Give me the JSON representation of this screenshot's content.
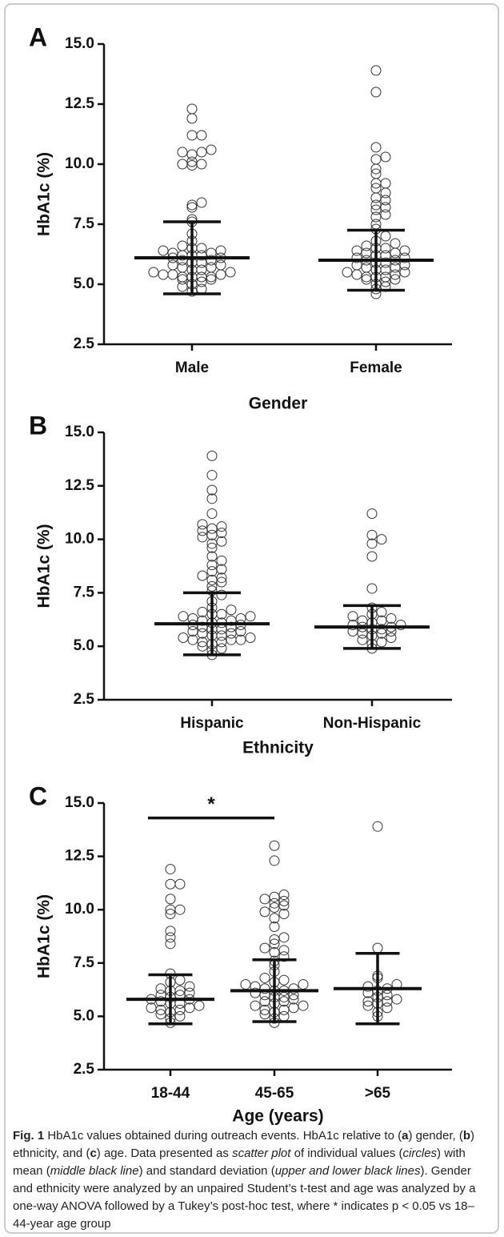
{
  "chart_data": [
    {
      "type": "dotplot",
      "panel": "A",
      "ylabel": "HbA1c (%)",
      "xlabel": "Gender",
      "categories": [
        "Male",
        "Female"
      ],
      "ylim": [
        2.5,
        15
      ],
      "yticks": [
        2.5,
        {
          "value": 5,
          "label": "5.0"
        },
        7.5,
        {
          "value": 10,
          "label": "10.0"
        },
        12.5,
        {
          "value": 15,
          "label": "15.0"
        }
      ],
      "groups": [
        {
          "mean": 6.1,
          "sd": 1.5,
          "values": [
            12.3,
            11.9,
            11.2,
            11.2,
            10.6,
            10.5,
            10.5,
            10.4,
            10.1,
            10.0,
            10.0,
            9.95,
            8.4,
            8.3,
            8.2,
            7.7,
            7.6,
            7.1,
            6.8,
            6.6,
            6.5,
            6.5,
            6.4,
            6.4,
            6.3,
            6.3,
            6.2,
            6.2,
            6.2,
            6.1,
            6.1,
            6.0,
            6.0,
            5.9,
            5.9,
            5.8,
            5.8,
            5.7,
            5.7,
            5.6,
            5.6,
            5.5,
            5.5,
            5.4,
            5.4,
            5.4,
            5.3,
            5.3,
            5.3,
            5.3,
            5.2,
            5.2,
            5.1,
            5.0,
            4.9,
            4.8,
            4.7
          ]
        },
        {
          "mean": 6.0,
          "sd": 1.25,
          "values": [
            13.9,
            13.0,
            10.7,
            10.3,
            10.2,
            9.8,
            9.6,
            9.2,
            9.2,
            9.0,
            8.8,
            8.6,
            8.5,
            8.3,
            8.2,
            8.1,
            7.9,
            7.8,
            7.5,
            7.3,
            7.0,
            6.8,
            6.7,
            6.6,
            6.5,
            6.5,
            6.4,
            6.4,
            6.3,
            6.3,
            6.2,
            6.2,
            6.1,
            6.1,
            6.0,
            6.0,
            5.9,
            5.9,
            5.8,
            5.8,
            5.7,
            5.7,
            5.6,
            5.6,
            5.5,
            5.5,
            5.4,
            5.4,
            5.3,
            5.3,
            5.3,
            5.2,
            5.2,
            5.1,
            5.0,
            4.9,
            4.8,
            4.6
          ]
        }
      ]
    },
    {
      "type": "dotplot",
      "panel": "B",
      "ylabel": "HbA1c (%)",
      "xlabel": "Ethnicity",
      "categories": [
        "Hispanic",
        "Non-Hispanic"
      ],
      "ylim": [
        2.5,
        15
      ],
      "yticks": [
        2.5,
        {
          "value": 5,
          "label": "5.0"
        },
        7.5,
        {
          "value": 10,
          "label": "10.0"
        },
        12.5,
        {
          "value": 15,
          "label": "15.0"
        }
      ],
      "groups": [
        {
          "mean": 6.05,
          "sd": 1.45,
          "values": [
            13.9,
            13.0,
            12.3,
            11.9,
            11.2,
            10.7,
            10.6,
            10.5,
            10.4,
            10.3,
            10.2,
            10.1,
            9.9,
            9.8,
            9.6,
            9.2,
            9.0,
            8.8,
            8.6,
            8.5,
            8.3,
            8.2,
            8.1,
            8.0,
            7.8,
            7.6,
            7.4,
            7.1,
            6.8,
            6.7,
            6.6,
            6.5,
            6.5,
            6.4,
            6.4,
            6.3,
            6.3,
            6.2,
            6.2,
            6.1,
            6.1,
            6.0,
            6.0,
            5.9,
            5.9,
            5.8,
            5.8,
            5.7,
            5.7,
            5.6,
            5.6,
            5.5,
            5.5,
            5.4,
            5.4,
            5.3,
            5.3,
            5.3,
            5.2,
            5.2,
            5.1,
            5.0,
            4.9,
            4.8,
            4.6
          ]
        },
        {
          "mean": 5.9,
          "sd": 1.0,
          "values": [
            11.2,
            10.2,
            10.0,
            9.8,
            9.2,
            7.7,
            6.8,
            6.6,
            6.5,
            6.4,
            6.3,
            6.2,
            6.2,
            6.1,
            6.0,
            6.0,
            5.9,
            5.9,
            5.8,
            5.8,
            5.7,
            5.7,
            5.6,
            5.6,
            5.5,
            5.4,
            5.3,
            5.2,
            5.1,
            4.9
          ]
        }
      ]
    },
    {
      "type": "dotplot",
      "panel": "C",
      "ylabel": "HbA1c (%)",
      "xlabel": "Age (years)",
      "categories": [
        "18-44",
        "45-65",
        ">65"
      ],
      "ylim": [
        2.5,
        15
      ],
      "yticks": [
        2.5,
        {
          "value": 5,
          "label": "5.0"
        },
        7.5,
        {
          "value": 10,
          "label": "10.0"
        },
        12.5,
        {
          "value": 15,
          "label": "15.0"
        }
      ],
      "significance": {
        "label": "*",
        "y": 14.3,
        "between": [
          "18-44",
          "45-65"
        ]
      },
      "groups": [
        {
          "mean": 5.8,
          "sd": 1.15,
          "values": [
            11.9,
            11.2,
            11.2,
            10.5,
            10.0,
            10.0,
            9.8,
            9.0,
            8.7,
            8.4,
            7.0,
            6.7,
            6.6,
            6.4,
            6.3,
            6.2,
            6.2,
            6.1,
            6.0,
            6.0,
            5.9,
            5.8,
            5.8,
            5.7,
            5.6,
            5.6,
            5.5,
            5.4,
            5.4,
            5.3,
            5.3,
            5.2,
            5.1,
            5.0,
            4.9,
            4.7
          ]
        },
        {
          "mean": 6.2,
          "sd": 1.45,
          "values": [
            13.0,
            12.3,
            10.7,
            10.6,
            10.5,
            10.4,
            10.3,
            10.2,
            10.1,
            9.9,
            9.8,
            9.6,
            9.2,
            8.7,
            8.6,
            8.4,
            8.2,
            8.1,
            8.0,
            7.8,
            7.6,
            7.4,
            7.1,
            6.8,
            6.7,
            6.6,
            6.5,
            6.5,
            6.4,
            6.3,
            6.3,
            6.2,
            6.2,
            6.1,
            6.0,
            6.0,
            5.9,
            5.9,
            5.8,
            5.7,
            5.7,
            5.6,
            5.5,
            5.5,
            5.4,
            5.3,
            5.3,
            5.2,
            5.1,
            5.0,
            4.9,
            4.7
          ]
        },
        {
          "mean": 6.3,
          "sd": 1.65,
          "values": [
            13.9,
            8.2,
            6.9,
            6.8,
            6.5,
            6.4,
            6.3,
            6.2,
            6.1,
            6.0,
            5.9,
            5.8,
            5.7,
            5.7,
            5.6,
            5.5,
            5.4,
            5.2,
            5.0
          ]
        }
      ]
    }
  ],
  "caption": [
    {
      "text": "Fig. 1",
      "style": "bold"
    },
    {
      "text": " HbA1c values obtained during outreach events. HbA1c relative to (",
      "style": "normal"
    },
    {
      "text": "a",
      "style": "bold"
    },
    {
      "text": ") gender, (",
      "style": "normal"
    },
    {
      "text": "b",
      "style": "bold"
    },
    {
      "text": ") ethnicity, and (",
      "style": "normal"
    },
    {
      "text": "c",
      "style": "bold"
    },
    {
      "text": ") age. Data presented as ",
      "style": "normal"
    },
    {
      "text": "scatter plot",
      "style": "italic"
    },
    {
      "text": " of individual values (",
      "style": "normal"
    },
    {
      "text": "circles",
      "style": "italic"
    },
    {
      "text": ") with mean (",
      "style": "normal"
    },
    {
      "text": "middle black line",
      "style": "italic"
    },
    {
      "text": ") and standard deviation (",
      "style": "normal"
    },
    {
      "text": "upper and lower black lines",
      "style": "italic"
    },
    {
      "text": "). Gender and ethnicity were analyzed by an unpaired Student’s t-test and age was analyzed by a one-way ANOVA followed by a Tukey’s post-hoc test, where * indicates p < 0.05 vs 18–44-year age group",
      "style": "normal"
    }
  ]
}
